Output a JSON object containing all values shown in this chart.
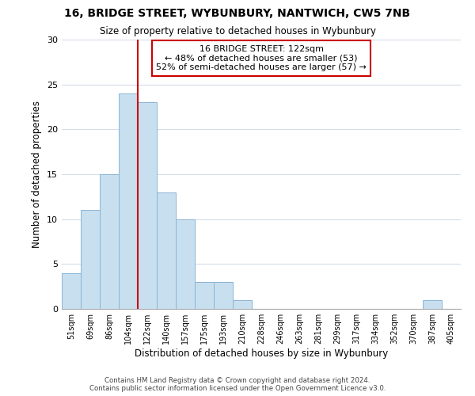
{
  "title": "16, BRIDGE STREET, WYBUNBURY, NANTWICH, CW5 7NB",
  "subtitle": "Size of property relative to detached houses in Wybunbury",
  "xlabel": "Distribution of detached houses by size in Wybunbury",
  "ylabel": "Number of detached properties",
  "bar_color": "#c8dff0",
  "bar_edgecolor": "#8ab4d4",
  "bin_labels": [
    "51sqm",
    "69sqm",
    "86sqm",
    "104sqm",
    "122sqm",
    "140sqm",
    "157sqm",
    "175sqm",
    "193sqm",
    "210sqm",
    "228sqm",
    "246sqm",
    "263sqm",
    "281sqm",
    "299sqm",
    "317sqm",
    "334sqm",
    "352sqm",
    "370sqm",
    "387sqm",
    "405sqm"
  ],
  "bar_heights": [
    4,
    11,
    15,
    24,
    23,
    13,
    10,
    3,
    3,
    1,
    0,
    0,
    0,
    0,
    0,
    0,
    0,
    0,
    0,
    1,
    0
  ],
  "vline_index": 4,
  "vline_color": "#cc0000",
  "ylim": [
    0,
    30
  ],
  "yticks": [
    0,
    5,
    10,
    15,
    20,
    25,
    30
  ],
  "annotation_title": "16 BRIDGE STREET: 122sqm",
  "annotation_line1": "← 48% of detached houses are smaller (53)",
  "annotation_line2": "52% of semi-detached houses are larger (57) →",
  "footer1": "Contains HM Land Registry data © Crown copyright and database right 2024.",
  "footer2": "Contains public sector information licensed under the Open Government Licence v3.0.",
  "background_color": "#ffffff",
  "grid_color": "#d4dce8"
}
